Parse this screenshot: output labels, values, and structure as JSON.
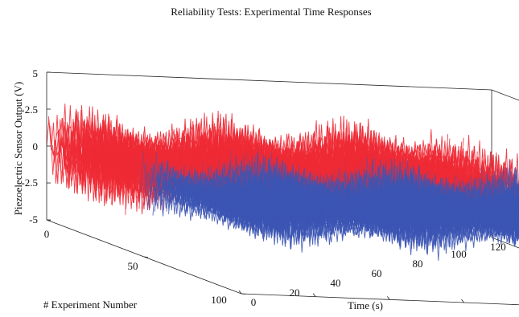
{
  "chart_data": {
    "type": "3d-waterfall",
    "title": "Reliability Tests: Experimental Time Responses",
    "xlabel": "Time (s)",
    "ylabel": "# Experiment Number",
    "zlabel": "Piezoelectric Sensor Output (V)",
    "xlim": [
      0,
      120
    ],
    "ylim": [
      0,
      100
    ],
    "zlim": [
      -5,
      5
    ],
    "x_ticks": [
      "0",
      "20",
      "40",
      "60",
      "80",
      "100",
      "120"
    ],
    "y_ticks": [
      "0",
      "50",
      "100"
    ],
    "z_ticks": [
      "-5",
      "-2.5",
      "0",
      "2.5",
      "5"
    ],
    "grid": false,
    "series_colors": {
      "near": "#3c55b4",
      "far": "#ee2a35"
    },
    "traces": {
      "count": 100,
      "time_span_s": [
        0,
        105
      ],
      "amplitude_far_V": 3.5,
      "amplitude_near_V": 2.3
    }
  }
}
